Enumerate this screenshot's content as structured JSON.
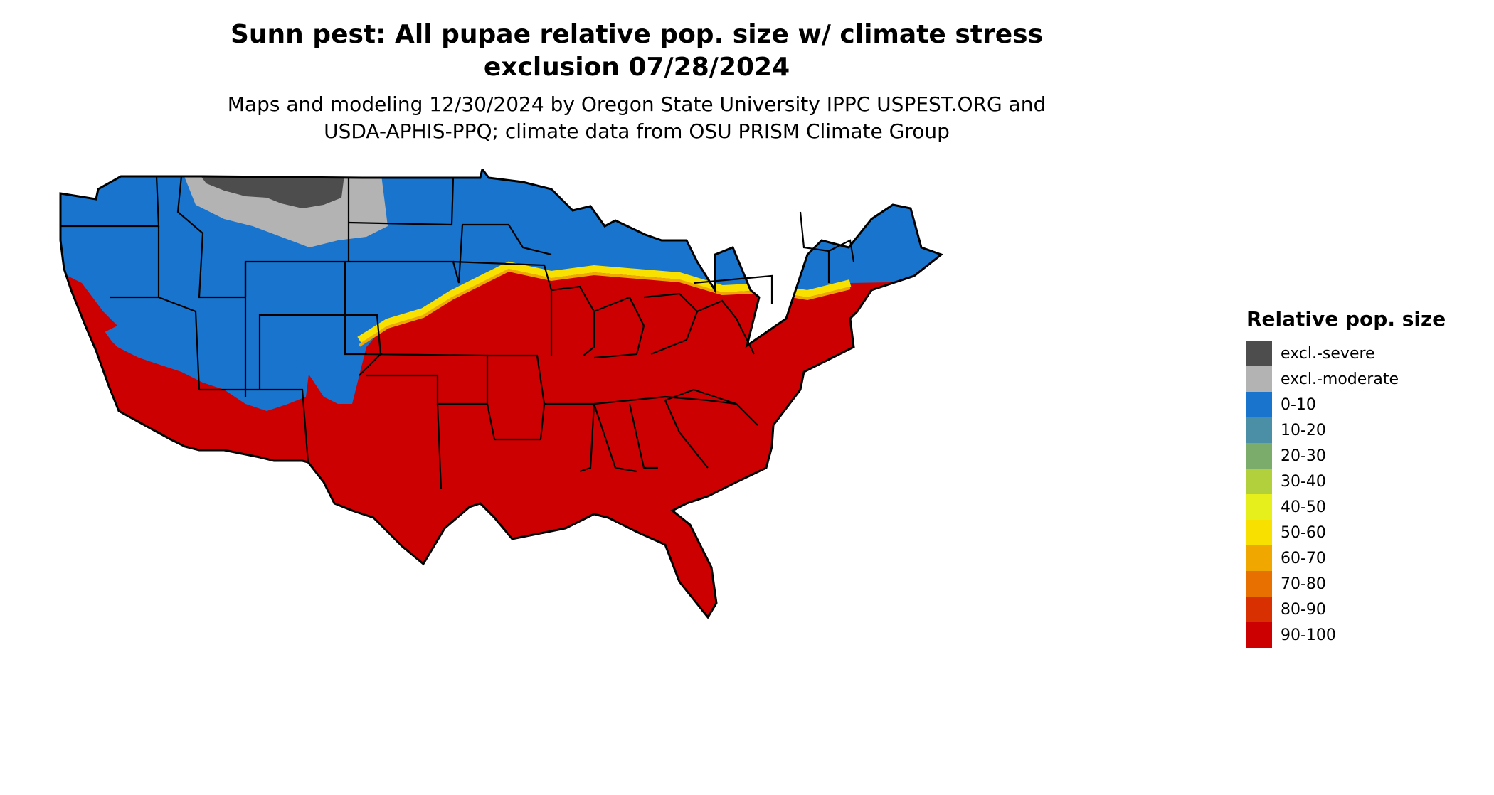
{
  "header": {
    "title_line1": "Sunn pest: All pupae relative pop. size w/ climate stress",
    "title_line2": "exclusion 07/28/2024",
    "subtitle_line1": "Maps and modeling 12/30/2024 by Oregon State University IPPC USPEST.ORG and",
    "subtitle_line2": "USDA-APHIS-PPQ; climate data from OSU PRISM Climate Group"
  },
  "legend": {
    "title": "Relative pop. size",
    "items": [
      {
        "label": "excl.-severe",
        "color": "#4d4d4d"
      },
      {
        "label": "excl.-moderate",
        "color": "#b3b3b3"
      },
      {
        "label": "0-10",
        "color": "#1874cd"
      },
      {
        "label": "10-20",
        "color": "#4a8fa5"
      },
      {
        "label": "20-30",
        "color": "#7cac6b"
      },
      {
        "label": "30-40",
        "color": "#b2d03c"
      },
      {
        "label": "40-50",
        "color": "#e6ee1c"
      },
      {
        "label": "50-60",
        "color": "#f8e000"
      },
      {
        "label": "60-70",
        "color": "#f0a800"
      },
      {
        "label": "70-80",
        "color": "#e87000"
      },
      {
        "label": "80-90",
        "color": "#d83000"
      },
      {
        "label": "90-100",
        "color": "#cc0000"
      }
    ]
  },
  "map_colors": {
    "land_high": "#cc0000",
    "land_low": "#1874cd",
    "excl_severe": "#4d4d4d",
    "excl_moderate": "#b3b3b3",
    "border": "#000000"
  }
}
